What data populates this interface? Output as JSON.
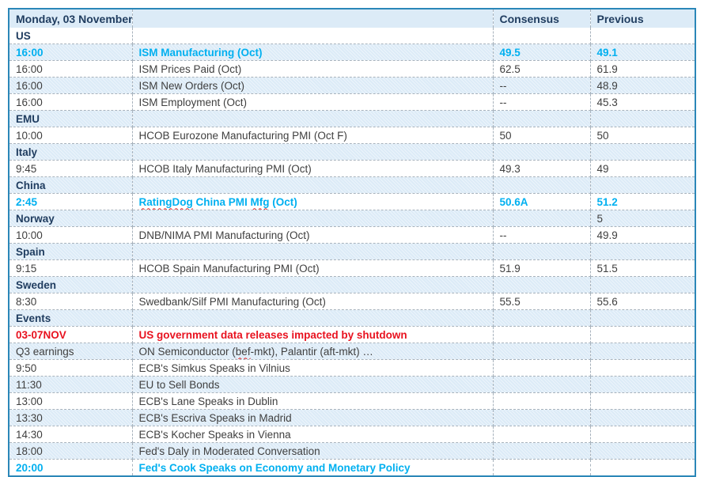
{
  "colors": {
    "border_blue": "#2b87b8",
    "header_navy": "#1f3c5f",
    "text_gray": "#3f3f3f",
    "highlight_cyan": "#00b0f0",
    "alert_red": "#e8121f",
    "row_light_blue": "#dcebf7"
  },
  "table": {
    "header": {
      "date_label": "Monday, 03 November",
      "event_label": "",
      "consensus_label": "Consensus",
      "previous_label": "Previous"
    },
    "rows": [
      {
        "type": "section",
        "label": "US"
      },
      {
        "type": "data",
        "time": "16:00",
        "event": "ISM Manufacturing (Oct)",
        "consensus": "49.5",
        "previous": "49.1",
        "style": "highlight"
      },
      {
        "type": "data",
        "time": "16:00",
        "event": "ISM Prices Paid (Oct)",
        "consensus": "62.5",
        "previous": "61.9"
      },
      {
        "type": "data",
        "time": "16:00",
        "event": "ISM New Orders (Oct)",
        "consensus": "--",
        "previous": "48.9"
      },
      {
        "type": "data",
        "time": "16:00",
        "event": "ISM Employment (Oct)",
        "consensus": "--",
        "previous": "45.3"
      },
      {
        "type": "section",
        "label": "EMU"
      },
      {
        "type": "data",
        "time": "10:00",
        "event": "HCOB Eurozone Manufacturing PMI (Oct F)",
        "consensus": "50",
        "previous": "50"
      },
      {
        "type": "section",
        "label": "Italy"
      },
      {
        "type": "data",
        "time": "9:45",
        "event": "HCOB Italy Manufacturing PMI (Oct)",
        "consensus": "49.3",
        "previous": "49"
      },
      {
        "type": "section",
        "label": "China"
      },
      {
        "type": "data",
        "time": "2:45",
        "event": "RatingDog China PMI Mfg (Oct)",
        "consensus": "50.6A",
        "previous": "51.2",
        "style": "highlight",
        "squiggles": [
          "RatingDog",
          "Mfg"
        ]
      },
      {
        "type": "section",
        "label": "Norway",
        "previous": "5"
      },
      {
        "type": "data",
        "time": "10:00",
        "event": "DNB/NIMA PMI Manufacturing (Oct)",
        "consensus": "--",
        "previous": "49.9"
      },
      {
        "type": "section",
        "label": "Spain"
      },
      {
        "type": "data",
        "time": "9:15",
        "event": "HCOB Spain Manufacturing PMI (Oct)",
        "consensus": "51.9",
        "previous": "51.5"
      },
      {
        "type": "section",
        "label": "Sweden"
      },
      {
        "type": "data",
        "time": "8:30",
        "event": "Swedbank/Silf PMI Manufacturing (Oct)",
        "consensus": "55.5",
        "previous": "55.6"
      },
      {
        "type": "section",
        "label": "Events"
      },
      {
        "type": "data",
        "time": "03-07NOV",
        "event": "US government data releases impacted by shutdown",
        "style": "alert"
      },
      {
        "type": "data",
        "time": "Q3 earnings",
        "event": "ON Semiconductor (bef-mkt), Palantir (aft-mkt) …",
        "squiggles": [
          "bef"
        ]
      },
      {
        "type": "data",
        "time": "9:50",
        "event": "ECB's Simkus Speaks in Vilnius"
      },
      {
        "type": "data",
        "time": "11:30",
        "event": "EU to Sell Bonds"
      },
      {
        "type": "data",
        "time": "13:00",
        "event": "ECB's Lane Speaks in Dublin"
      },
      {
        "type": "data",
        "time": "13:30",
        "event": "ECB's Escriva Speaks in Madrid"
      },
      {
        "type": "data",
        "time": "14:30",
        "event": "ECB's Kocher Speaks in Vienna"
      },
      {
        "type": "data",
        "time": "18:00",
        "event": "Fed's Daly in Moderated Conversation"
      },
      {
        "type": "data",
        "time": "20:00",
        "event": "Fed's Cook Speaks on Economy and Monetary Policy",
        "style": "highlight"
      }
    ]
  }
}
